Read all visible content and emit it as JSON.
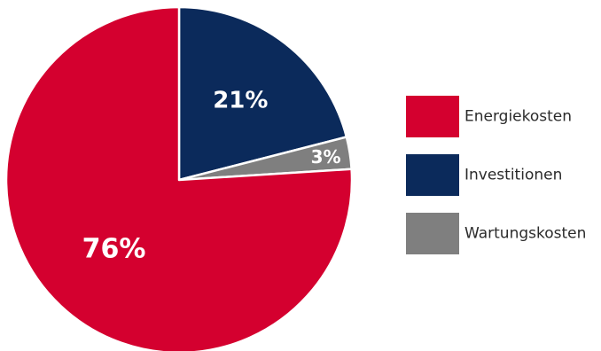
{
  "chart_data": {
    "type": "pie",
    "title": "",
    "start": "12 o'clock",
    "direction": "clockwise",
    "legend_position": "right",
    "slices": [
      {
        "label": "Investitionen",
        "value": 21,
        "display": "21%",
        "color": "#0b2a5b"
      },
      {
        "label": "Wartungskosten",
        "value": 3,
        "display": "3%",
        "color": "#7f7f7f"
      },
      {
        "label": "Energiekosten",
        "value": 76,
        "display": "76%",
        "color": "#d4002f"
      }
    ],
    "legend": [
      {
        "label": "Energiekosten",
        "color": "#d4002f"
      },
      {
        "label": "Investitionen",
        "color": "#0b2a5b"
      },
      {
        "label": "Wartungskosten",
        "color": "#7f7f7f"
      }
    ]
  }
}
